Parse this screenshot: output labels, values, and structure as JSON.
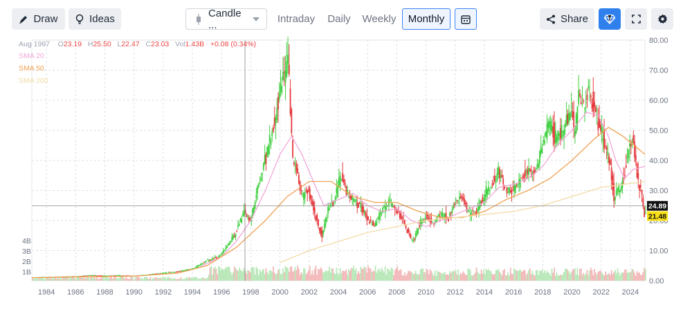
{
  "toolbar": {
    "draw_label": "Draw",
    "ideas_label": "Ideas",
    "chart_type_label": "Candle ...",
    "tabs": [
      "Intraday",
      "Daily",
      "Weekly",
      "Monthly"
    ],
    "active_tab": "Monthly",
    "share_label": "Share"
  },
  "ohlc": {
    "date": "Aug 1997",
    "o_label": "O",
    "o": "23.19",
    "h_label": "H",
    "h": "25.50",
    "l_label": "L",
    "l": "22.47",
    "c_label": "C",
    "c": "23.03",
    "vol_label": "Vol",
    "vol": "1.43B",
    "change": "+0.08 (0.34%)"
  },
  "legend": [
    "SMA 20",
    "SMA 50",
    "SMA 200"
  ],
  "price_badges": {
    "crosshair": "24.89",
    "last": "21.48"
  },
  "colors": {
    "up": "#3ecf3e",
    "down": "#e5373b",
    "sma20": "#f2a6d8",
    "sma50": "#f0a050",
    "sma200": "#f3dca6",
    "badge_last": "#f7e017",
    "badge_cross": "#111111",
    "accent": "#3b82f6"
  },
  "chart_data": {
    "type": "candlestick",
    "interval": "monthly",
    "x_ticks": [
      "1984",
      "1986",
      "1988",
      "1990",
      "1992",
      "1994",
      "1996",
      "1998",
      "2000",
      "2002",
      "2004",
      "2006",
      "2008",
      "2010",
      "2012",
      "2014",
      "2016",
      "2018",
      "2020",
      "2022",
      "2024"
    ],
    "y_ticks": [
      "0.00",
      "10.00",
      "20.00",
      "30.00",
      "40.00",
      "50.00",
      "60.00",
      "70.00",
      "80.00"
    ],
    "ylim": [
      0,
      80
    ],
    "volume_ticks": [
      "1B",
      "2B",
      "3B",
      "4B"
    ],
    "crosshair": {
      "date": "Aug 1997",
      "price": 24.89
    },
    "last_price": 21.48,
    "series": [
      {
        "name": "Price",
        "points": [
          [
            1983.0,
            1.0
          ],
          [
            1984.0,
            1.2
          ],
          [
            1985.0,
            1.3
          ],
          [
            1986.0,
            1.4
          ],
          [
            1987.0,
            1.8
          ],
          [
            1988.0,
            1.6
          ],
          [
            1989.0,
            1.7
          ],
          [
            1990.0,
            1.6
          ],
          [
            1991.0,
            2.0
          ],
          [
            1992.0,
            2.5
          ],
          [
            1993.0,
            3.0
          ],
          [
            1994.0,
            3.8
          ],
          [
            1995.0,
            6.5
          ],
          [
            1996.0,
            8.5
          ],
          [
            1997.0,
            16.0
          ],
          [
            1997.6,
            23.0
          ],
          [
            1998.0,
            20.0
          ],
          [
            1998.5,
            30.0
          ],
          [
            1999.0,
            40.0
          ],
          [
            1999.5,
            50.0
          ],
          [
            2000.0,
            62.0
          ],
          [
            2000.3,
            70.0
          ],
          [
            2000.6,
            72.0
          ],
          [
            2000.9,
            42.0
          ],
          [
            2001.2,
            35.0
          ],
          [
            2001.6,
            28.0
          ],
          [
            2002.0,
            30.0
          ],
          [
            2002.6,
            19.0
          ],
          [
            2002.9,
            15.0
          ],
          [
            2003.3,
            23.0
          ],
          [
            2003.8,
            27.0
          ],
          [
            2004.2,
            35.0
          ],
          [
            2004.6,
            30.0
          ],
          [
            2005.0,
            27.0
          ],
          [
            2005.5,
            25.0
          ],
          [
            2006.0,
            21.0
          ],
          [
            2006.5,
            18.0
          ],
          [
            2007.0,
            23.0
          ],
          [
            2007.5,
            26.0
          ],
          [
            2008.0,
            23.0
          ],
          [
            2008.5,
            20.0
          ],
          [
            2008.9,
            15.0
          ],
          [
            2009.2,
            13.0
          ],
          [
            2009.6,
            19.0
          ],
          [
            2010.0,
            21.0
          ],
          [
            2010.6,
            19.0
          ],
          [
            2011.0,
            22.0
          ],
          [
            2011.6,
            21.0
          ],
          [
            2012.0,
            26.0
          ],
          [
            2012.5,
            28.0
          ],
          [
            2013.0,
            22.0
          ],
          [
            2013.5,
            23.0
          ],
          [
            2014.0,
            28.0
          ],
          [
            2014.6,
            33.0
          ],
          [
            2015.0,
            36.0
          ],
          [
            2015.5,
            30.0
          ],
          [
            2016.0,
            30.0
          ],
          [
            2016.6,
            34.0
          ],
          [
            2017.0,
            36.0
          ],
          [
            2017.6,
            37.0
          ],
          [
            2018.0,
            45.0
          ],
          [
            2018.5,
            52.0
          ],
          [
            2019.0,
            47.0
          ],
          [
            2019.6,
            52.0
          ],
          [
            2020.0,
            57.0
          ],
          [
            2020.2,
            48.0
          ],
          [
            2020.5,
            62.0
          ],
          [
            2020.9,
            58.0
          ],
          [
            2021.2,
            65.0
          ],
          [
            2021.5,
            58.0
          ],
          [
            2021.9,
            52.0
          ],
          [
            2022.2,
            47.0
          ],
          [
            2022.6,
            40.0
          ],
          [
            2022.9,
            28.0
          ],
          [
            2023.2,
            30.0
          ],
          [
            2023.6,
            34.0
          ],
          [
            2023.9,
            45.0
          ],
          [
            2024.2,
            47.0
          ],
          [
            2024.5,
            35.0
          ],
          [
            2024.8,
            29.0
          ],
          [
            2025.0,
            22.0
          ]
        ]
      },
      {
        "name": "SMA 20",
        "points": [
          [
            1994.5,
            4.5
          ],
          [
            1996.0,
            8.0
          ],
          [
            1997.0,
            13.0
          ],
          [
            1998.0,
            20.0
          ],
          [
            1999.0,
            30.0
          ],
          [
            2000.0,
            42.0
          ],
          [
            2000.8,
            48.0
          ],
          [
            2001.5,
            42.0
          ],
          [
            2002.2,
            34.0
          ],
          [
            2003.0,
            25.0
          ],
          [
            2004.0,
            27.0
          ],
          [
            2005.0,
            29.0
          ],
          [
            2006.0,
            25.0
          ],
          [
            2007.0,
            23.0
          ],
          [
            2008.0,
            24.0
          ],
          [
            2009.0,
            20.0
          ],
          [
            2010.0,
            18.0
          ],
          [
            2011.0,
            20.0
          ],
          [
            2012.0,
            22.0
          ],
          [
            2013.0,
            24.0
          ],
          [
            2014.0,
            26.0
          ],
          [
            2015.0,
            31.0
          ],
          [
            2016.0,
            32.0
          ],
          [
            2017.0,
            34.0
          ],
          [
            2018.0,
            38.0
          ],
          [
            2019.0,
            45.0
          ],
          [
            2020.0,
            50.0
          ],
          [
            2021.0,
            56.0
          ],
          [
            2021.8,
            55.0
          ],
          [
            2022.5,
            48.0
          ],
          [
            2023.0,
            40.0
          ],
          [
            2023.6,
            34.0
          ],
          [
            2024.2,
            37.0
          ],
          [
            2025.0,
            38.0
          ]
        ]
      },
      {
        "name": "SMA 50",
        "points": [
          [
            1983.0,
            1.0
          ],
          [
            1990.0,
            1.5
          ],
          [
            1993.0,
            2.5
          ],
          [
            1995.0,
            5.0
          ],
          [
            1997.0,
            11.0
          ],
          [
            1999.0,
            20.0
          ],
          [
            2000.5,
            28.0
          ],
          [
            2002.0,
            33.0
          ],
          [
            2003.5,
            33.0
          ],
          [
            2005.0,
            28.0
          ],
          [
            2006.5,
            26.0
          ],
          [
            2008.0,
            26.0
          ],
          [
            2009.5,
            23.0
          ],
          [
            2011.0,
            21.0
          ],
          [
            2012.5,
            21.0
          ],
          [
            2014.0,
            23.0
          ],
          [
            2015.5,
            27.0
          ],
          [
            2017.0,
            30.0
          ],
          [
            2018.5,
            34.0
          ],
          [
            2020.0,
            40.0
          ],
          [
            2021.5,
            47.0
          ],
          [
            2022.5,
            51.0
          ],
          [
            2023.5,
            48.0
          ],
          [
            2025.0,
            42.0
          ]
        ]
      },
      {
        "name": "SMA 200",
        "points": [
          [
            2000.0,
            6.0
          ],
          [
            2002.0,
            10.0
          ],
          [
            2004.0,
            13.0
          ],
          [
            2006.0,
            16.0
          ],
          [
            2008.0,
            18.0
          ],
          [
            2010.0,
            20.0
          ],
          [
            2012.0,
            21.0
          ],
          [
            2014.0,
            22.0
          ],
          [
            2016.0,
            23.0
          ],
          [
            2018.0,
            25.0
          ],
          [
            2020.0,
            28.0
          ],
          [
            2022.0,
            31.0
          ],
          [
            2025.0,
            33.0
          ]
        ]
      }
    ]
  }
}
